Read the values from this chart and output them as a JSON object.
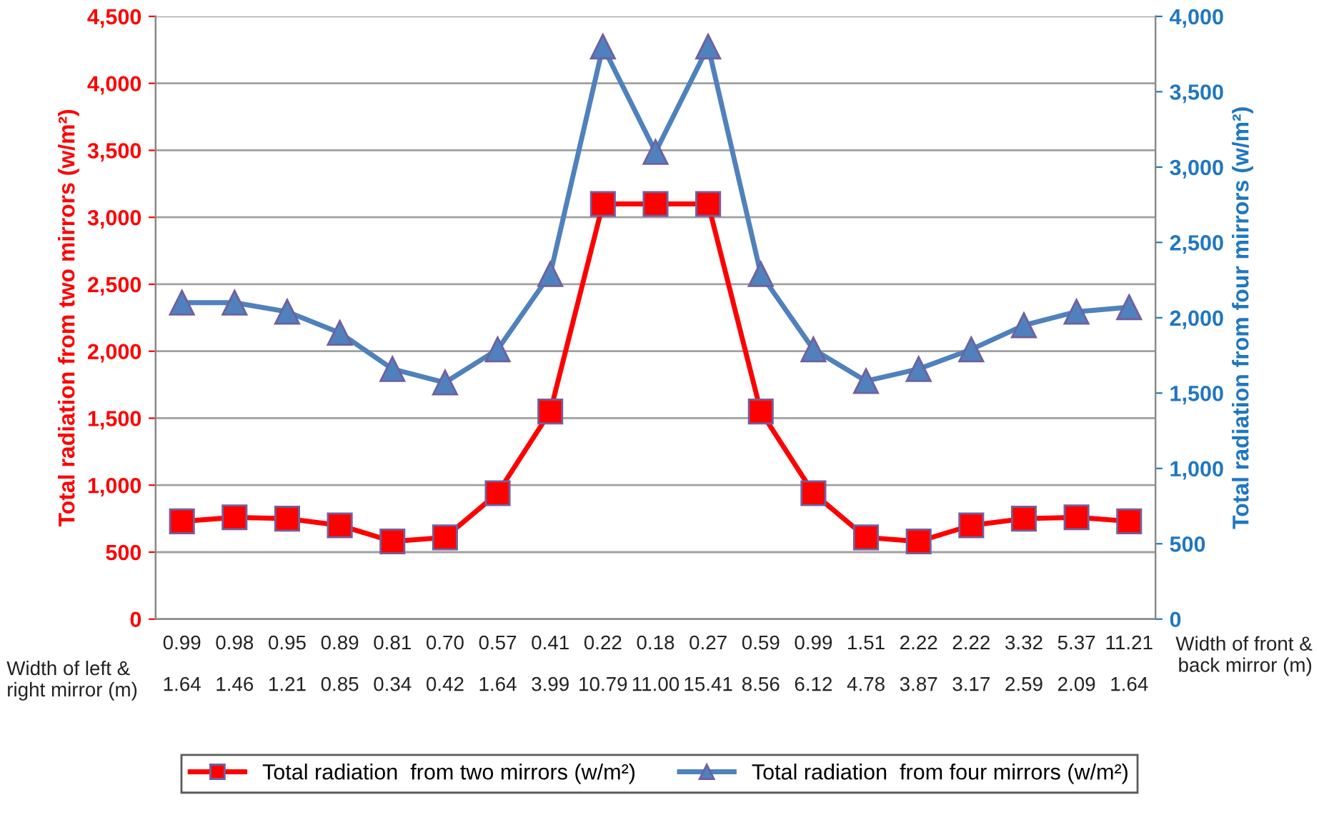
{
  "chart_data": {
    "type": "line",
    "ylabel": "Total radiation from two mirrors (w/m²)",
    "y2label": "Total radiation from four mirrors (w/m²)",
    "categories": [
      "0.99\n1.64",
      "0.98\n1.46",
      "0.95\n1.21",
      "0.89\n0.85",
      "0.81\n0.34",
      "0.70\n0.42",
      "0.57\n1.64",
      "0.41\n3.99",
      "0.22\n10.79",
      "0.18\n11.00",
      "0.27\n15.41",
      "0.59\n8.56",
      "0.99\n6.12",
      "1.51\n4.78",
      "2.22\n3.87",
      "2.22\n3.17",
      "3.32\n2.59",
      "5.37\n2.09",
      "11.21\n1.64"
    ],
    "series": [
      {
        "name": "Total radiation  from two mirrors (w/m²)",
        "color": "#ff0000",
        "marker": "square",
        "values": [
          730,
          760,
          750,
          700,
          580,
          610,
          940,
          1550,
          3100,
          3100,
          3100,
          1550,
          940,
          610,
          580,
          700,
          750,
          760,
          730
        ]
      },
      {
        "name": "Total radiation  from four mirrors (w/m²)",
        "color": "#4f81bd",
        "marker": "triangle",
        "axis": "y2",
        "values": [
          2100,
          2100,
          2040,
          1900,
          1660,
          1570,
          1790,
          2290,
          3800,
          3100,
          3800,
          2290,
          1790,
          1580,
          1660,
          1790,
          1950,
          2040,
          2070
        ]
      }
    ],
    "ylim": [
      0,
      4500
    ],
    "yticks": [
      {
        "value": 0,
        "label": "0"
      },
      {
        "value": 500,
        "label": "500"
      },
      {
        "value": 1000,
        "label": "1,000"
      },
      {
        "value": 1500,
        "label": "1,500"
      },
      {
        "value": 2000,
        "label": "2,000"
      },
      {
        "value": 2500,
        "label": "2,500"
      },
      {
        "value": 3000,
        "label": "3,000"
      },
      {
        "value": 3500,
        "label": "3,500"
      },
      {
        "value": 4000,
        "label": "4,000"
      },
      {
        "value": 4500,
        "label": "4,500"
      }
    ],
    "y2lim": [
      0,
      4000
    ],
    "y2ticks": [
      {
        "value": 0,
        "label": "0"
      },
      {
        "value": 500,
        "label": "500"
      },
      {
        "value": 1000,
        "label": "1,000"
      },
      {
        "value": 1500,
        "label": "1,500"
      },
      {
        "value": 2000,
        "label": "2,000"
      },
      {
        "value": 2500,
        "label": "2,500"
      },
      {
        "value": 3000,
        "label": "3,000"
      },
      {
        "value": 3500,
        "label": "3,500"
      },
      {
        "value": 4000,
        "label": "4,000"
      }
    ],
    "annotations": [
      "Width of front &\nback mirror (m)",
      "Width of left &\nright mirror (m)"
    ],
    "grid": "y",
    "legend": "bottom",
    "line_style": "solid"
  }
}
